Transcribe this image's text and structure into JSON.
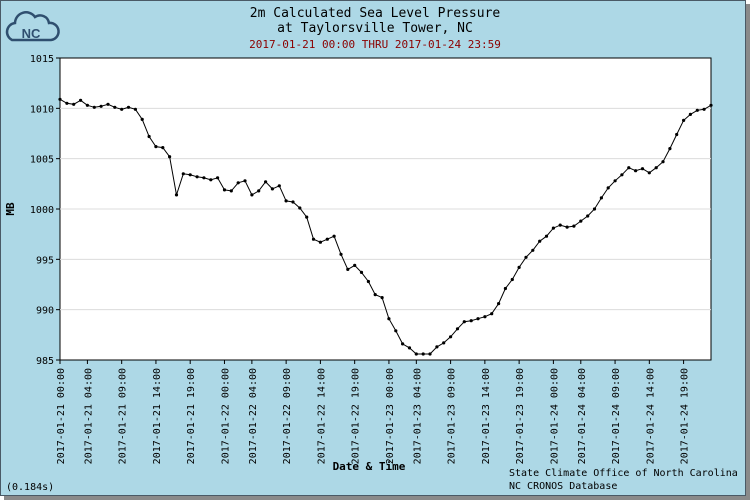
{
  "header": {
    "logo_text": "NC",
    "title_line1": "2m Calculated Sea Level Pressure",
    "title_line2": "at Taylorsville Tower, NC",
    "date_range": "2017-01-21 00:00 THRU 2017-01-24 23:59"
  },
  "footer": {
    "credit_line1": "State Climate Office of North Carolina",
    "credit_line2": "NC CRONOS Database",
    "timing": "(0.184s)"
  },
  "colors": {
    "background": "#add8e6",
    "plot_background": "#ffffff",
    "series": "#000000",
    "grid": "#dcdcdc",
    "subtitle": "#8b0000"
  },
  "chart_data": {
    "type": "line",
    "xlabel": "Date & Time",
    "ylabel": "MB",
    "ylim": [
      985,
      1015
    ],
    "y_ticks": [
      985,
      990,
      995,
      1000,
      1005,
      1010,
      1015
    ],
    "x_range": [
      "2017-01-21 00:00",
      "2017-01-24 23:00"
    ],
    "x_tick_labels": [
      "2017-01-21 00:00",
      "2017-01-21 04:00",
      "2017-01-21 09:00",
      "2017-01-21 14:00",
      "2017-01-21 19:00",
      "2017-01-22 00:00",
      "2017-01-22 04:00",
      "2017-01-22 09:00",
      "2017-01-22 14:00",
      "2017-01-22 19:00",
      "2017-01-23 00:00",
      "2017-01-23 04:00",
      "2017-01-23 09:00",
      "2017-01-23 14:00",
      "2017-01-23 19:00",
      "2017-01-24 00:00",
      "2017-01-24 04:00",
      "2017-01-24 09:00",
      "2017-01-24 14:00",
      "2017-01-24 19:00"
    ],
    "grid": true,
    "legend": "none",
    "series": [
      {
        "x_start": "2017-01-21 00:00",
        "x_step": "1 hour",
        "values": [
          1010.9,
          1010.5,
          1010.4,
          1010.8,
          1010.3,
          1010.1,
          1010.2,
          1010.4,
          1010.1,
          1009.9,
          1010.1,
          1009.9,
          1008.9,
          1007.2,
          1006.2,
          1006.1,
          1005.2,
          1001.4,
          1003.5,
          1003.4,
          1003.2,
          1003.1,
          1002.9,
          1003.1,
          1001.9,
          1001.8,
          1002.6,
          1002.8,
          1001.4,
          1001.8,
          1002.7,
          1002.0,
          1002.3,
          1000.8,
          1000.7,
          1000.1,
          999.2,
          997.0,
          996.7,
          997.0,
          997.3,
          995.5,
          994.0,
          994.4,
          993.7,
          992.8,
          991.5,
          991.2,
          989.1,
          987.9,
          986.6,
          986.2,
          985.6,
          985.6,
          985.6,
          986.3,
          986.7,
          987.3,
          988.1,
          988.8,
          988.9,
          989.1,
          989.3,
          989.6,
          990.6,
          992.1,
          993.0,
          994.2,
          995.2,
          995.9,
          996.8,
          997.3,
          998.1,
          998.4,
          998.2,
          998.3,
          998.8,
          999.3,
          1000.0,
          1001.1,
          1002.1,
          1002.8,
          1003.4,
          1004.1,
          1003.8,
          1004.0,
          1003.6,
          1004.1,
          1004.7,
          1006.0,
          1007.4,
          1008.8,
          1009.4,
          1009.8,
          1009.9,
          1010.3
        ]
      }
    ]
  }
}
